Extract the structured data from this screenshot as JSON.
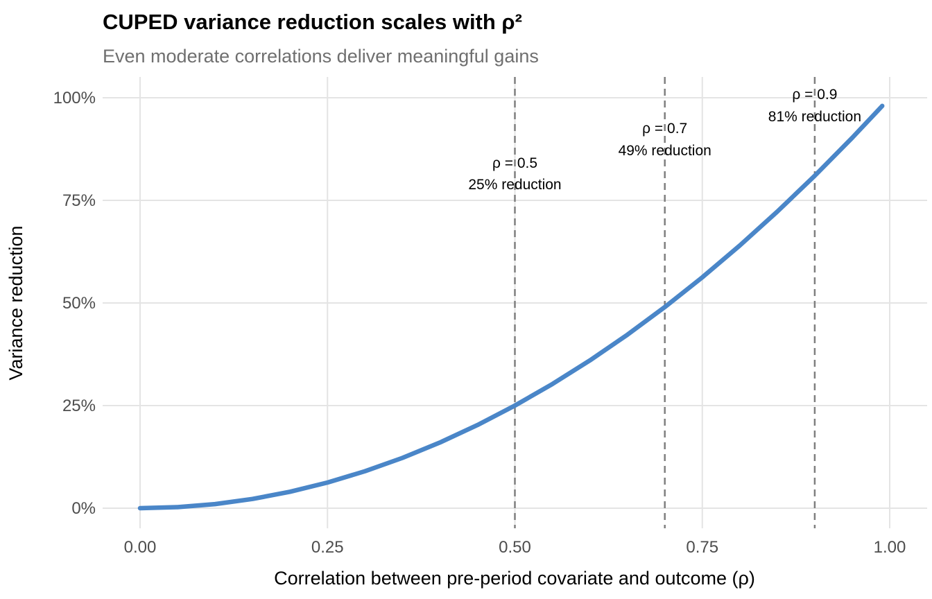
{
  "chart_data": {
    "type": "line",
    "title": "CUPED variance reduction scales with ρ²",
    "subtitle": "Even moderate correlations deliver meaningful gains",
    "xlabel": "Correlation between pre-period covariate and outcome (ρ)",
    "ylabel": "Variance reduction",
    "xlim": [
      0,
      1
    ],
    "ylim": [
      0,
      1
    ],
    "grid": true,
    "legend": "none",
    "x_ticks": [
      {
        "value": 0.0,
        "label": "0.00"
      },
      {
        "value": 0.25,
        "label": "0.25"
      },
      {
        "value": 0.5,
        "label": "0.50"
      },
      {
        "value": 0.75,
        "label": "0.75"
      },
      {
        "value": 1.0,
        "label": "1.00"
      }
    ],
    "y_ticks": [
      {
        "value": 0.0,
        "label": "0%"
      },
      {
        "value": 0.25,
        "label": "25%"
      },
      {
        "value": 0.5,
        "label": "50%"
      },
      {
        "value": 0.75,
        "label": "75%"
      },
      {
        "value": 1.0,
        "label": "100%"
      }
    ],
    "series": [
      {
        "name": "variance-reduction-vs-rho",
        "color": "#4a86c8",
        "x": [
          0.0,
          0.05,
          0.1,
          0.15,
          0.2,
          0.25,
          0.3,
          0.35,
          0.4,
          0.45,
          0.5,
          0.55,
          0.6,
          0.65,
          0.7,
          0.75,
          0.8,
          0.85,
          0.9,
          0.95,
          0.99
        ],
        "y": [
          0.0,
          0.0025,
          0.01,
          0.0225,
          0.04,
          0.0625,
          0.09,
          0.1225,
          0.16,
          0.2025,
          0.25,
          0.3025,
          0.36,
          0.4225,
          0.49,
          0.5625,
          0.64,
          0.7225,
          0.81,
          0.9025,
          0.9801
        ]
      }
    ],
    "reference_lines": [
      {
        "x": 0.5,
        "label_line1": "ρ = 0.5",
        "label_line2": "25% reduction"
      },
      {
        "x": 0.7,
        "label_line1": "ρ = 0.7",
        "label_line2": "49% reduction"
      },
      {
        "x": 0.9,
        "label_line1": "ρ = 0.9",
        "label_line2": "81% reduction"
      }
    ],
    "colors": {
      "line": "#4a86c8",
      "grid": "#e4e4e4",
      "reference": "#7f7f7f",
      "tick_text": "#4d4d4d",
      "axis_title_text": "#000000",
      "title_text": "#000000",
      "subtitle_text": "#6f6f6f",
      "annotation_text": "#000000",
      "background": "#ffffff"
    }
  }
}
